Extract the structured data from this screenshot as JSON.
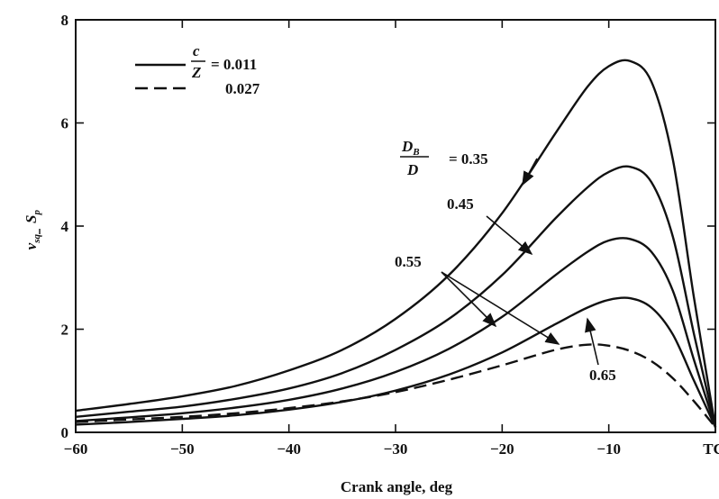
{
  "chart_data": {
    "type": "line",
    "xlabel": "Crank angle, deg",
    "ylabel_numerator": "v",
    "ylabel_numerator_sub": "sq",
    "ylabel_denominator": "S",
    "ylabel_denominator_sub": "p",
    "xlim": [
      -60,
      0
    ],
    "ylim": [
      0,
      8
    ],
    "x_ticks": [
      {
        "value": -60,
        "label": "−60"
      },
      {
        "value": -50,
        "label": "−50"
      },
      {
        "value": -40,
        "label": "−40"
      },
      {
        "value": -30,
        "label": "−30"
      },
      {
        "value": -20,
        "label": "−20"
      },
      {
        "value": -10,
        "label": "−10"
      },
      {
        "value": 0,
        "label": "TC"
      }
    ],
    "y_ticks": [
      {
        "value": 0,
        "label": "0"
      },
      {
        "value": 2,
        "label": "2"
      },
      {
        "value": 4,
        "label": "4"
      },
      {
        "value": 6,
        "label": "6"
      },
      {
        "value": 8,
        "label": "8"
      }
    ],
    "legend": {
      "position": "top-left",
      "param_numerator": "c",
      "param_denominator": "Z",
      "entries": [
        {
          "style": "solid",
          "text": "= 0.011"
        },
        {
          "style": "dashed",
          "text": "0.027"
        }
      ]
    },
    "series_annotation": {
      "numerator": "D",
      "numerator_sub": "B",
      "denominator": "D",
      "text": "= 0.35"
    },
    "annotations": [
      "0.45",
      "0.55",
      "0.65"
    ],
    "series": [
      {
        "style": "solid",
        "x": [
          -60,
          -55,
          -50,
          -45,
          -40,
          -35,
          -30,
          -25,
          -20,
          -15,
          -12,
          -10,
          -8,
          -6,
          -4,
          -2,
          0
        ],
        "y": [
          0.42,
          0.55,
          0.7,
          0.9,
          1.2,
          1.6,
          2.2,
          3.05,
          4.25,
          5.8,
          6.7,
          7.1,
          7.2,
          6.8,
          5.3,
          2.6,
          0.1
        ]
      },
      {
        "style": "solid",
        "x": [
          -60,
          -55,
          -50,
          -45,
          -40,
          -35,
          -30,
          -25,
          -20,
          -15,
          -12,
          -10,
          -8,
          -6,
          -4,
          -2,
          0
        ],
        "y": [
          0.3,
          0.4,
          0.5,
          0.65,
          0.85,
          1.15,
          1.6,
          2.2,
          3.05,
          4.15,
          4.75,
          5.05,
          5.15,
          4.85,
          3.8,
          1.9,
          0.1
        ]
      },
      {
        "style": "solid",
        "x": [
          -60,
          -55,
          -50,
          -45,
          -40,
          -35,
          -30,
          -25,
          -20,
          -15,
          -12,
          -10,
          -8,
          -6,
          -4,
          -2,
          0
        ],
        "y": [
          0.22,
          0.29,
          0.37,
          0.48,
          0.63,
          0.85,
          1.17,
          1.62,
          2.24,
          3.05,
          3.5,
          3.72,
          3.75,
          3.5,
          2.75,
          1.4,
          0.1
        ]
      },
      {
        "style": "solid",
        "x": [
          -60,
          -55,
          -50,
          -45,
          -40,
          -35,
          -30,
          -25,
          -20,
          -15,
          -12,
          -10,
          -8,
          -6,
          -4,
          -2,
          0
        ],
        "y": [
          0.15,
          0.2,
          0.26,
          0.33,
          0.44,
          0.59,
          0.81,
          1.12,
          1.55,
          2.1,
          2.42,
          2.57,
          2.6,
          2.42,
          1.9,
          1.0,
          0.1
        ]
      },
      {
        "style": "dashed",
        "x": [
          -60,
          -55,
          -50,
          -45,
          -40,
          -35,
          -30,
          -25,
          -20,
          -15,
          -12,
          -10,
          -8,
          -6,
          -4,
          -2,
          0
        ],
        "y": [
          0.2,
          0.25,
          0.3,
          0.37,
          0.47,
          0.6,
          0.78,
          1.02,
          1.3,
          1.6,
          1.7,
          1.68,
          1.58,
          1.38,
          1.05,
          0.6,
          0.1
        ]
      }
    ]
  }
}
